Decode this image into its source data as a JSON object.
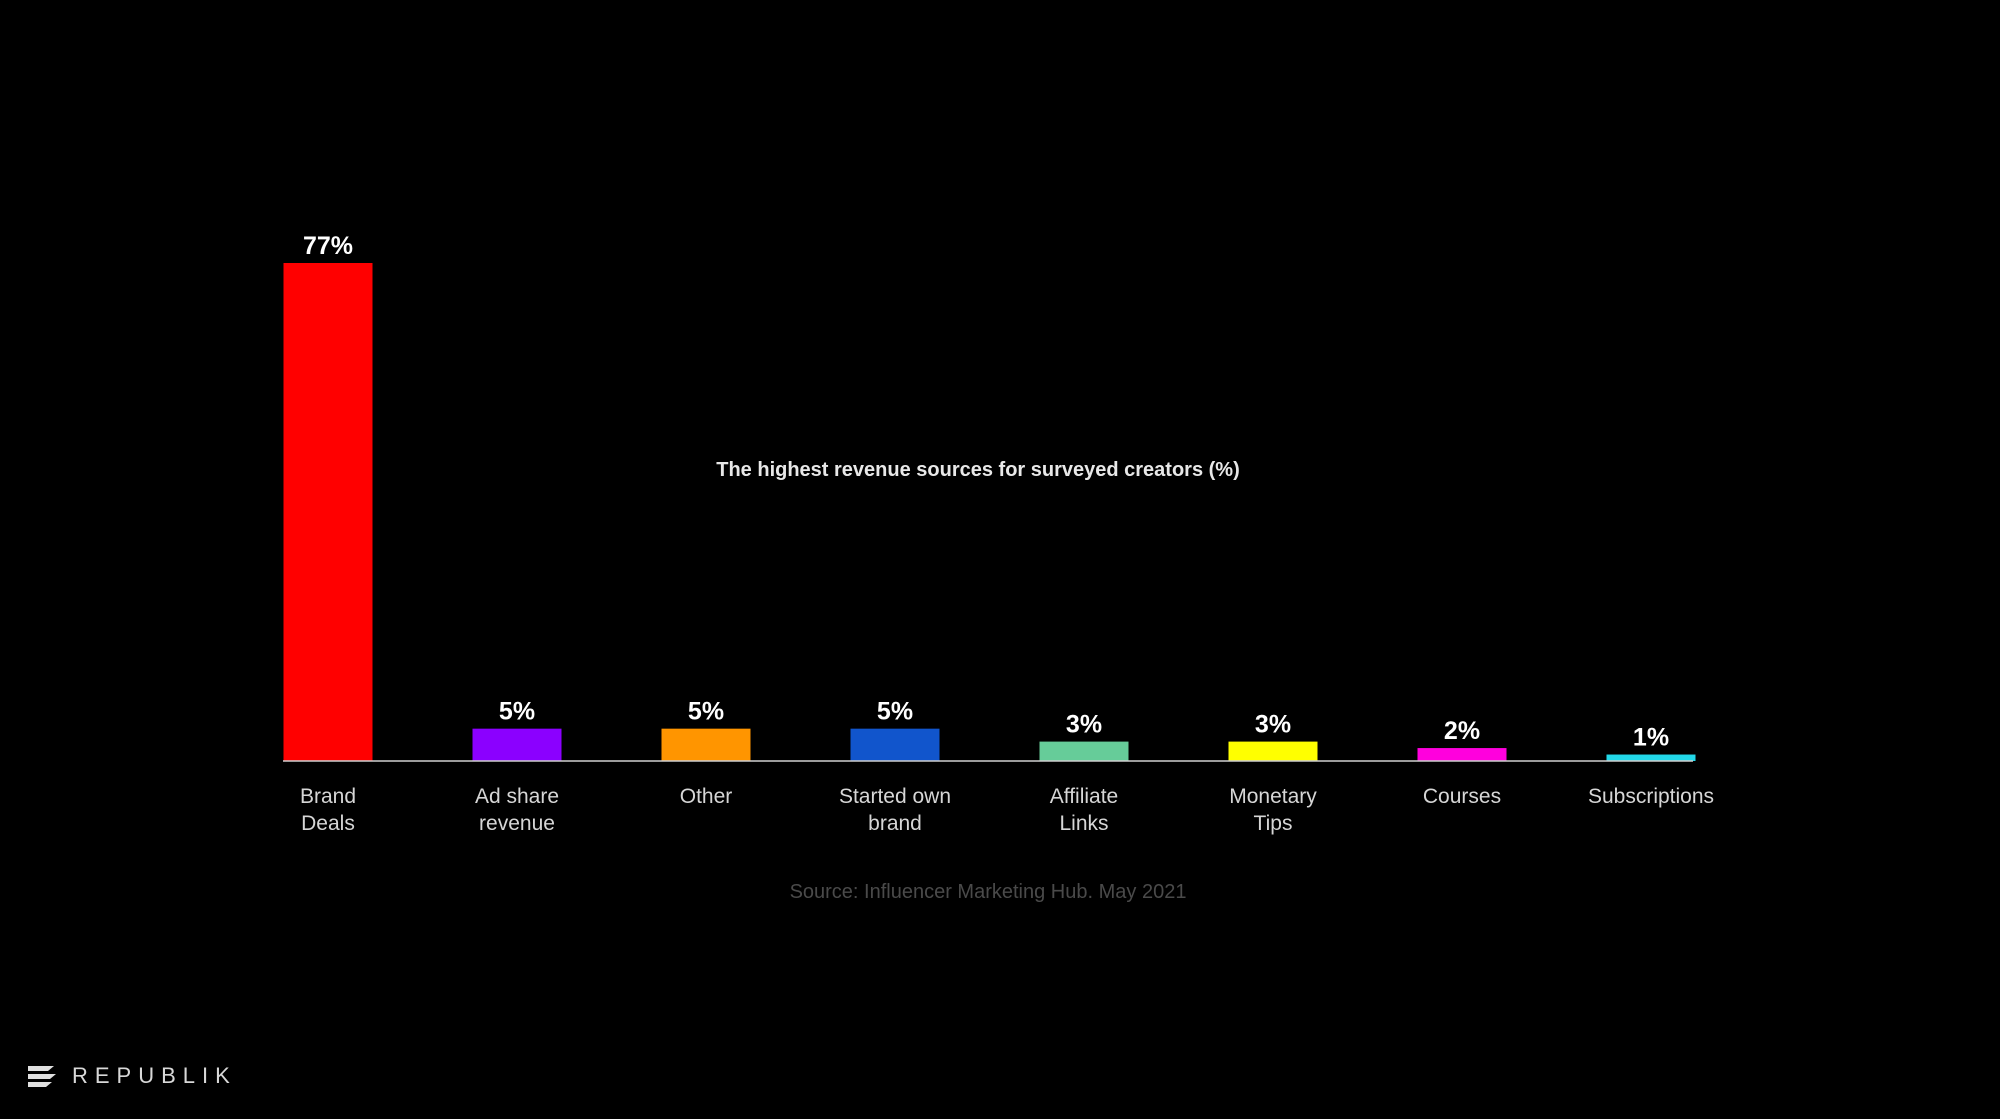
{
  "chart_data": {
    "type": "bar",
    "title": "The highest revenue sources for surveyed creators (%)",
    "categories": [
      [
        "Brand",
        "Deals"
      ],
      [
        "Ad share",
        "revenue"
      ],
      [
        "Other"
      ],
      [
        "Started own",
        "brand"
      ],
      [
        "Affiliate",
        "Links"
      ],
      [
        "Monetary",
        "Tips"
      ],
      [
        "Courses"
      ],
      [
        "Subscriptions"
      ]
    ],
    "values": [
      77,
      5,
      5,
      5,
      3,
      3,
      2,
      1
    ],
    "value_labels": [
      "77%",
      "5%",
      "5%",
      "5%",
      "3%",
      "3%",
      "2%",
      "1%"
    ],
    "colors": [
      "#ff0000",
      "#8b00ff",
      "#ff9500",
      "#1155cc",
      "#66cc99",
      "#ffff00",
      "#ff00dd",
      "#22d8e8"
    ],
    "ylim": [
      0,
      77
    ],
    "grid": false,
    "legend": "none",
    "xlabel": "",
    "ylabel": "",
    "source": "Source: Influencer Marketing Hub. May 2021"
  },
  "brand": {
    "logo_text": "REPUBLIK",
    "logo_icon": "republik-flag-icon"
  }
}
